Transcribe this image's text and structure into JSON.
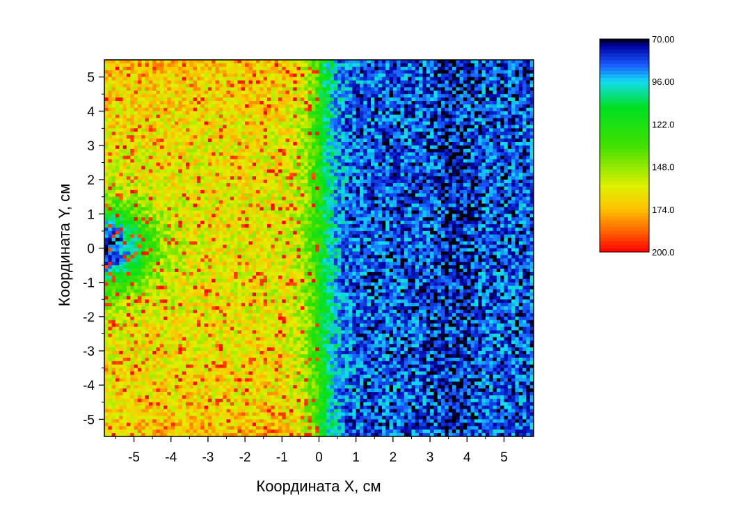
{
  "chart_data": {
    "type": "heatmap",
    "xlabel": "Координата X, см",
    "ylabel": "Координата Y, см",
    "xlim": [
      -5.8,
      5.8
    ],
    "ylim": [
      -5.5,
      5.5
    ],
    "x_ticks": [
      -5,
      -4,
      -3,
      -2,
      -1,
      0,
      1,
      2,
      3,
      4,
      5
    ],
    "y_ticks": [
      5,
      4,
      3,
      2,
      1,
      0,
      -1,
      -2,
      -3,
      -4,
      -5
    ],
    "x_tick_labels": [
      "-5",
      "-4",
      "-3",
      "-2",
      "-1",
      "0",
      "1",
      "2",
      "3",
      "4",
      "5"
    ],
    "y_tick_labels": [
      "5",
      "4",
      "3",
      "2",
      "1",
      "0",
      "-1",
      "-2",
      "-3",
      "-4",
      "-5"
    ],
    "colorbar": {
      "range": [
        70,
        200
      ],
      "labels": [
        "70.00",
        "96.00",
        "122.0",
        "148.0",
        "174.0",
        "200.0"
      ],
      "stops": [
        {
          "value": 70,
          "color": "#000000"
        },
        {
          "value": 74,
          "color": "#0000a0"
        },
        {
          "value": 86,
          "color": "#1a5cff"
        },
        {
          "value": 96,
          "color": "#12dcf0"
        },
        {
          "value": 112,
          "color": "#00e020"
        },
        {
          "value": 135,
          "color": "#40e000"
        },
        {
          "value": 160,
          "color": "#e0f000"
        },
        {
          "value": 174,
          "color": "#ffc000"
        },
        {
          "value": 188,
          "color": "#ff6000"
        },
        {
          "value": 200,
          "color": "#ff0000"
        }
      ],
      "placement": "right"
    },
    "grid": false,
    "regions": {
      "left_region_x_range": [
        -5.8,
        0
      ],
      "left_region_level": 162,
      "right_region_x_range": [
        0,
        5.8
      ],
      "right_region_level": 84,
      "transition_x": 0,
      "low_spot_center": [
        -5.8,
        0
      ],
      "low_spot_level": 75
    }
  }
}
